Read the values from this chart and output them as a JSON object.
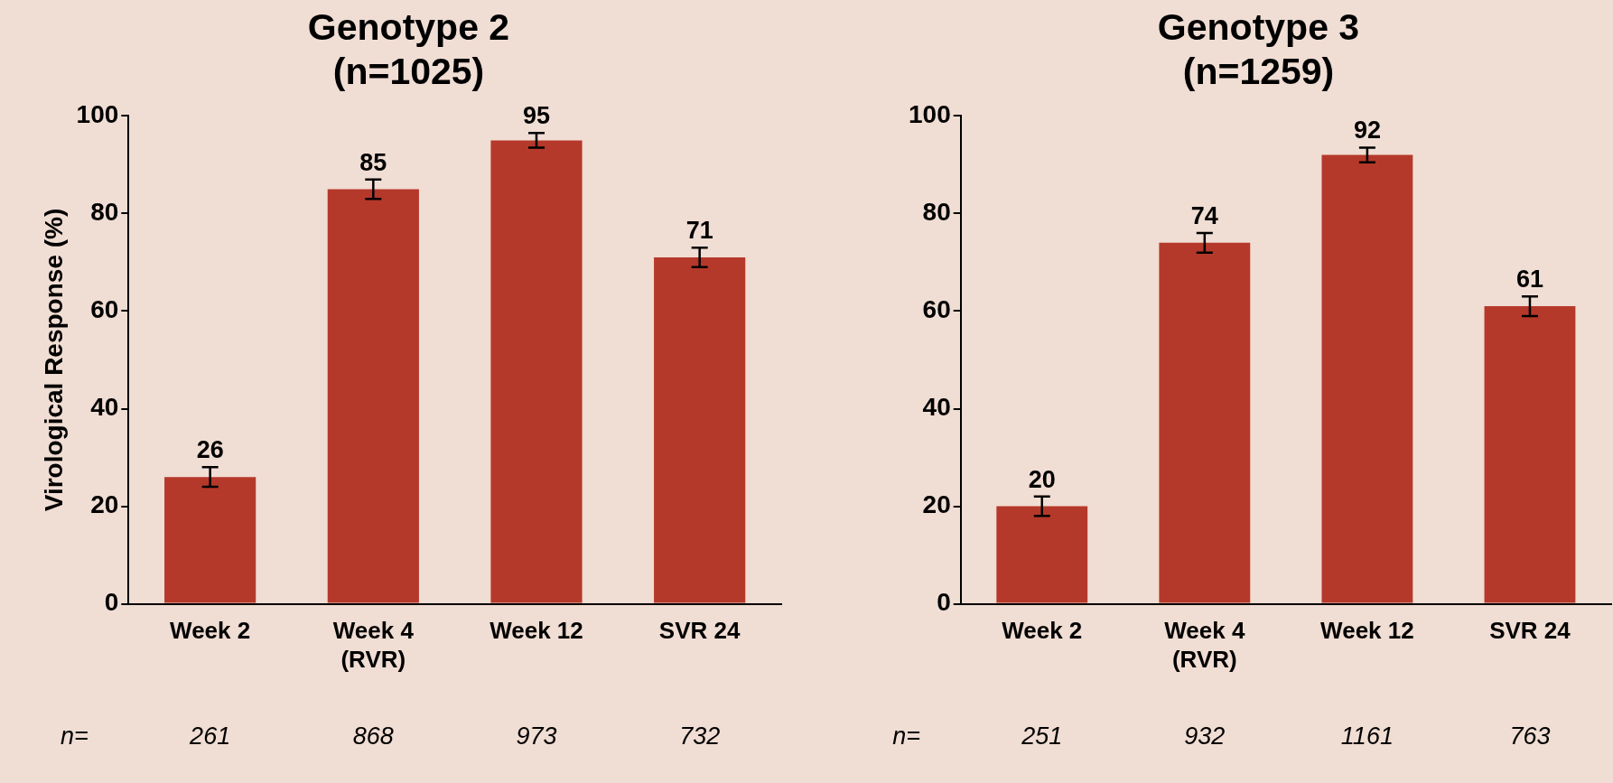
{
  "chart_data": [
    {
      "type": "bar",
      "title": "Genotype 2\n(n=1025)",
      "ylabel": "Virological Response (%)",
      "categories": [
        "Week 2",
        "Week 4\n(RVR)",
        "Week 12",
        "SVR 24"
      ],
      "values": [
        26,
        85,
        95,
        71
      ],
      "errors": [
        2,
        2,
        1.5,
        2
      ],
      "color": "#b5392a",
      "data_labels": true,
      "ylim": [
        0,
        100
      ],
      "yticks": [
        0,
        20,
        40,
        60,
        80,
        100
      ],
      "grid": false,
      "legend": false,
      "annotations": [
        "n=",
        "261",
        "868",
        "973",
        "732"
      ]
    },
    {
      "type": "bar",
      "title": "Genotype 3\n(n=1259)",
      "categories": [
        "Week 2",
        "Week 4\n(RVR)",
        "Week 12",
        "SVR 24"
      ],
      "values": [
        20,
        74,
        92,
        61
      ],
      "errors": [
        2,
        2,
        1.5,
        2
      ],
      "color": "#b5392a",
      "data_labels": true,
      "ylim": [
        0,
        100
      ],
      "yticks": [
        0,
        20,
        40,
        60,
        80,
        100
      ],
      "grid": false,
      "legend": false,
      "annotations": [
        "n=",
        "251",
        "932",
        "1161",
        "763"
      ]
    }
  ]
}
